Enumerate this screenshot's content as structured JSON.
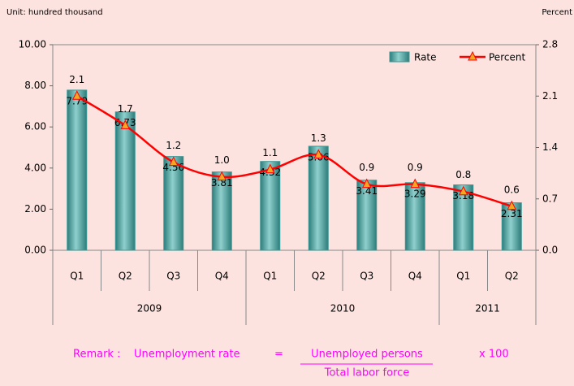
{
  "chart_data": {
    "type": "bar_line",
    "unit_label": "Unit: hundred thousand",
    "y2_label": "Percent",
    "groups": [
      {
        "name": "2009",
        "categories": [
          "Q1",
          "Q2",
          "Q3",
          "Q4"
        ]
      },
      {
        "name": "2010",
        "categories": [
          "Q1",
          "Q2",
          "Q3",
          "Q4"
        ]
      },
      {
        "name": "2011",
        "categories": [
          "Q1",
          "Q2"
        ]
      }
    ],
    "series": [
      {
        "name": "Rate",
        "type": "bar",
        "color": "#3a9896",
        "values": [
          7.79,
          6.73,
          4.56,
          3.81,
          4.32,
          5.06,
          3.41,
          3.29,
          3.18,
          2.31
        ]
      },
      {
        "name": "Percent",
        "type": "line",
        "axis": "y2",
        "color": "#ff0000",
        "marker_color": "#f5a623",
        "values": [
          2.1,
          1.7,
          1.2,
          1.0,
          1.1,
          1.3,
          0.9,
          0.9,
          0.8,
          0.6
        ],
        "value_labels": [
          "2.1",
          "1.7",
          "1.2",
          "1.0",
          "1.1",
          "1.3",
          "0.9",
          "0.9",
          "0.8",
          "0.6"
        ]
      }
    ],
    "ylim": [
      0,
      10
    ],
    "yticks": [
      {
        "value": 0,
        "label": "0.00"
      },
      {
        "value": 2,
        "label": "2.00"
      },
      {
        "value": 4,
        "label": "4.00"
      },
      {
        "value": 6,
        "label": "6.00"
      },
      {
        "value": 8,
        "label": "8.00"
      },
      {
        "value": 10,
        "label": "10.00"
      }
    ],
    "y2lim": [
      0,
      2.8
    ],
    "y2ticks": [
      {
        "value": 0,
        "label": "0.0"
      },
      0.7,
      1.4,
      2.1,
      2.8
    ],
    "legend": "top-right",
    "remark": {
      "label": "Remark :",
      "term": "Unemployment rate",
      "equals": "=",
      "numerator": "Unemployed persons",
      "denominator": "Total labor force",
      "factor": "x 100"
    }
  }
}
